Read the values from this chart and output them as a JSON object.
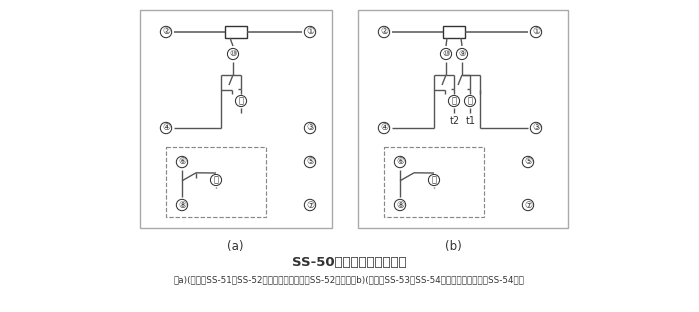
{
  "title": "SS-50系列背后端子接线图",
  "subtitle": "（a)(背视）SS-51、SS-52型，图中虚线部分仅SS-52型有；（b)(背视）SS-53、SS-54型，图中虚线部分仅SS-54型有",
  "label_a": "(a)",
  "label_b": "(b)",
  "bg_color": "#ffffff",
  "lc": "#555555",
  "dc": "#333333"
}
